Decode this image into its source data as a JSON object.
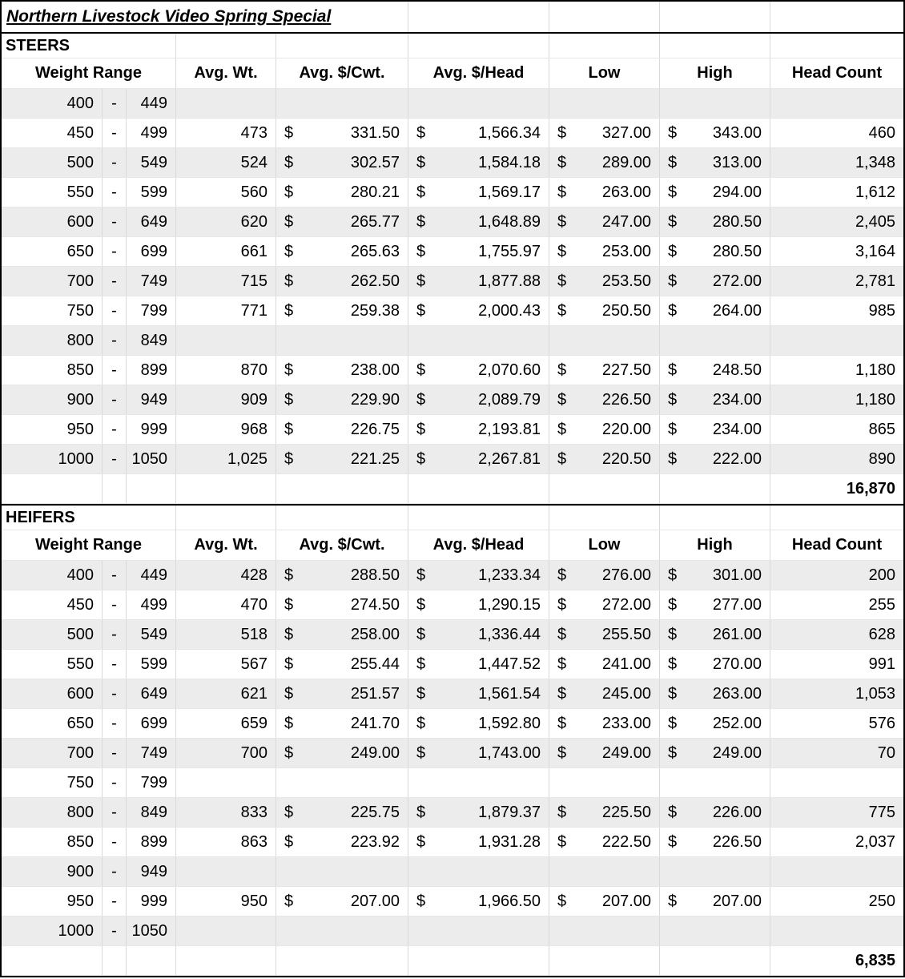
{
  "title": "Northern Livestock Video Spring Special",
  "currency_symbol": "$",
  "dash": "-",
  "columns": [
    "Weight Range",
    "Avg. Wt.",
    "Avg. $/Cwt.",
    "Avg. $/Head",
    "Low",
    "High",
    "Head Count"
  ],
  "sections": [
    {
      "label": "STEERS",
      "total": "16,870",
      "rows": [
        {
          "weight_low": "400",
          "weight_high": "449",
          "avg_wt": "",
          "avg_cwt": "",
          "avg_head": "",
          "low": "",
          "high": "",
          "head_count": ""
        },
        {
          "weight_low": "450",
          "weight_high": "499",
          "avg_wt": "473",
          "avg_cwt": "331.50",
          "avg_head": "1,566.34",
          "low": "327.00",
          "high": "343.00",
          "head_count": "460"
        },
        {
          "weight_low": "500",
          "weight_high": "549",
          "avg_wt": "524",
          "avg_cwt": "302.57",
          "avg_head": "1,584.18",
          "low": "289.00",
          "high": "313.00",
          "head_count": "1,348"
        },
        {
          "weight_low": "550",
          "weight_high": "599",
          "avg_wt": "560",
          "avg_cwt": "280.21",
          "avg_head": "1,569.17",
          "low": "263.00",
          "high": "294.00",
          "head_count": "1,612"
        },
        {
          "weight_low": "600",
          "weight_high": "649",
          "avg_wt": "620",
          "avg_cwt": "265.77",
          "avg_head": "1,648.89",
          "low": "247.00",
          "high": "280.50",
          "head_count": "2,405"
        },
        {
          "weight_low": "650",
          "weight_high": "699",
          "avg_wt": "661",
          "avg_cwt": "265.63",
          "avg_head": "1,755.97",
          "low": "253.00",
          "high": "280.50",
          "head_count": "3,164"
        },
        {
          "weight_low": "700",
          "weight_high": "749",
          "avg_wt": "715",
          "avg_cwt": "262.50",
          "avg_head": "1,877.88",
          "low": "253.50",
          "high": "272.00",
          "head_count": "2,781"
        },
        {
          "weight_low": "750",
          "weight_high": "799",
          "avg_wt": "771",
          "avg_cwt": "259.38",
          "avg_head": "2,000.43",
          "low": "250.50",
          "high": "264.00",
          "head_count": "985"
        },
        {
          "weight_low": "800",
          "weight_high": "849",
          "avg_wt": "",
          "avg_cwt": "",
          "avg_head": "",
          "low": "",
          "high": "",
          "head_count": ""
        },
        {
          "weight_low": "850",
          "weight_high": "899",
          "avg_wt": "870",
          "avg_cwt": "238.00",
          "avg_head": "2,070.60",
          "low": "227.50",
          "high": "248.50",
          "head_count": "1,180"
        },
        {
          "weight_low": "900",
          "weight_high": "949",
          "avg_wt": "909",
          "avg_cwt": "229.90",
          "avg_head": "2,089.79",
          "low": "226.50",
          "high": "234.00",
          "head_count": "1,180"
        },
        {
          "weight_low": "950",
          "weight_high": "999",
          "avg_wt": "968",
          "avg_cwt": "226.75",
          "avg_head": "2,193.81",
          "low": "220.00",
          "high": "234.00",
          "head_count": "865"
        },
        {
          "weight_low": "1000",
          "weight_high": "1050",
          "avg_wt": "1,025",
          "avg_cwt": "221.25",
          "avg_head": "2,267.81",
          "low": "220.50",
          "high": "222.00",
          "head_count": "890"
        }
      ]
    },
    {
      "label": "HEIFERS",
      "total": "6,835",
      "rows": [
        {
          "weight_low": "400",
          "weight_high": "449",
          "avg_wt": "428",
          "avg_cwt": "288.50",
          "avg_head": "1,233.34",
          "low": "276.00",
          "high": "301.00",
          "head_count": "200"
        },
        {
          "weight_low": "450",
          "weight_high": "499",
          "avg_wt": "470",
          "avg_cwt": "274.50",
          "avg_head": "1,290.15",
          "low": "272.00",
          "high": "277.00",
          "head_count": "255"
        },
        {
          "weight_low": "500",
          "weight_high": "549",
          "avg_wt": "518",
          "avg_cwt": "258.00",
          "avg_head": "1,336.44",
          "low": "255.50",
          "high": "261.00",
          "head_count": "628"
        },
        {
          "weight_low": "550",
          "weight_high": "599",
          "avg_wt": "567",
          "avg_cwt": "255.44",
          "avg_head": "1,447.52",
          "low": "241.00",
          "high": "270.00",
          "head_count": "991"
        },
        {
          "weight_low": "600",
          "weight_high": "649",
          "avg_wt": "621",
          "avg_cwt": "251.57",
          "avg_head": "1,561.54",
          "low": "245.00",
          "high": "263.00",
          "head_count": "1,053"
        },
        {
          "weight_low": "650",
          "weight_high": "699",
          "avg_wt": "659",
          "avg_cwt": "241.70",
          "avg_head": "1,592.80",
          "low": "233.00",
          "high": "252.00",
          "head_count": "576"
        },
        {
          "weight_low": "700",
          "weight_high": "749",
          "avg_wt": "700",
          "avg_cwt": "249.00",
          "avg_head": "1,743.00",
          "low": "249.00",
          "high": "249.00",
          "head_count": "70"
        },
        {
          "weight_low": "750",
          "weight_high": "799",
          "avg_wt": "",
          "avg_cwt": "",
          "avg_head": "",
          "low": "",
          "high": "",
          "head_count": ""
        },
        {
          "weight_low": "800",
          "weight_high": "849",
          "avg_wt": "833",
          "avg_cwt": "225.75",
          "avg_head": "1,879.37",
          "low": "225.50",
          "high": "226.00",
          "head_count": "775"
        },
        {
          "weight_low": "850",
          "weight_high": "899",
          "avg_wt": "863",
          "avg_cwt": "223.92",
          "avg_head": "1,931.28",
          "low": "222.50",
          "high": "226.50",
          "head_count": "2,037"
        },
        {
          "weight_low": "900",
          "weight_high": "949",
          "avg_wt": "",
          "avg_cwt": "",
          "avg_head": "",
          "low": "",
          "high": "",
          "head_count": ""
        },
        {
          "weight_low": "950",
          "weight_high": "999",
          "avg_wt": "950",
          "avg_cwt": "207.00",
          "avg_head": "1,966.50",
          "low": "207.00",
          "high": "207.00",
          "head_count": "250"
        },
        {
          "weight_low": "1000",
          "weight_high": "1050",
          "avg_wt": "",
          "avg_cwt": "",
          "avg_head": "",
          "low": "",
          "high": "",
          "head_count": ""
        }
      ]
    }
  ]
}
